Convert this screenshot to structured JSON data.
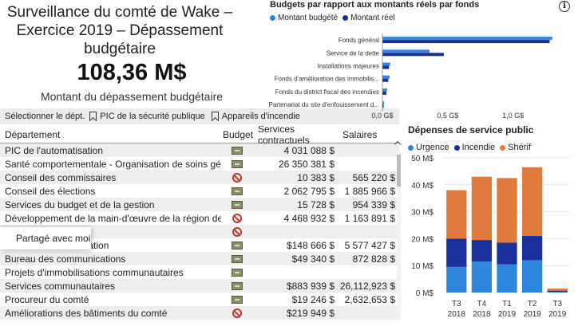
{
  "header": {
    "title_line1": "Surveillance du comté de Wake –",
    "title_line2": "Exercice 2019 – Dépassement",
    "title_line3": "budgétaire",
    "kpi_value": "108,36 M$",
    "kpi_label": "Montant du dépassement budgétaire"
  },
  "slicer": {
    "label": "Sélectionner le dépt.",
    "options": [
      "PIC de la sécurité publique",
      "Appareils d'incendie"
    ]
  },
  "table": {
    "headers": {
      "dept": "Département",
      "budget": "Budget",
      "services": "Services contractuels",
      "salaries": "Salaires"
    },
    "rows": [
      {
        "dept": "PIC de l'automatisation",
        "icon": "budget-ok-icon",
        "services": "4 031 088 $",
        "salaries": ""
      },
      {
        "dept": "Santé comportementale - Organisation de soins gérés",
        "icon": "budget-ok-icon",
        "services": "26 350 381 $",
        "salaries": ""
      },
      {
        "dept": "Conseil des commissaires",
        "icon": "over-budget-icon",
        "services": "10 383 $",
        "salaries": "565 220 $"
      },
      {
        "dept": "Conseil des élections",
        "icon": "budget-ok-icon",
        "services": "2 062 795 $",
        "salaries": "1 885 966 $"
      },
      {
        "dept": "Services du budget et de la gestion",
        "icon": "budget-ok-icon",
        "services": "15 728 $",
        "salaries": "954 339 $"
      },
      {
        "dept": "Développement de la main-d'œuvre de la région de la",
        "icon": "over-budget-icon",
        "services": "4 468 932 $",
        "salaries": "1 163 891 $"
      },
      {
        "dept": "",
        "icon": "over-budget-icon",
        "services": "",
        "salaries": ""
      },
      {
        "dept": "Bureau de l'identification",
        "icon": "budget-ok-icon",
        "services": "$148 666 $",
        "salaries": "5 577 427 $"
      },
      {
        "dept": "Bureau des communications",
        "icon": "budget-ok-icon",
        "services": "$49 340 $",
        "salaries": "872 828 $"
      },
      {
        "dept": "Projets d'immobilisations communautaires",
        "icon": "budget-ok-icon",
        "services": "",
        "salaries": ""
      },
      {
        "dept": "Services communautaires",
        "icon": "budget-ok-icon",
        "services": "$883 939 $",
        "salaries": "26,112,923 $"
      },
      {
        "dept": "Procureur du comté",
        "icon": "budget-ok-icon",
        "services": "$19 246 $",
        "salaries": "2,632,653 $"
      },
      {
        "dept": "Améliorations des bâtiments du comté",
        "icon": "over-budget-icon",
        "services": "$219 949 $",
        "salaries": ""
      }
    ]
  },
  "tooltip": {
    "text": "Partagé avec moi"
  },
  "colors": {
    "light_blue": "#2f86de",
    "dark_blue": "#1a2f9e",
    "orange": "#e07b3d"
  },
  "chart_data": [
    {
      "type": "bar",
      "orientation": "horizontal",
      "title": "Budgets par rapport aux montants réels par fonds",
      "categories": [
        "Fonds général",
        "Service de la dette",
        "Installations majeures",
        "Fonds d'amélioration des immobilis...",
        "Fonds du district fiscal des incendies",
        "Partenariat du site d'enfouissement d..."
      ],
      "series": [
        {
          "name": "Montant budgété",
          "color": "#2f86de",
          "values": [
            1.3,
            0.36,
            0.06,
            0.055,
            0.035,
            0.012
          ]
        },
        {
          "name": "Montant réel",
          "color": "#1a2f9e",
          "values": [
            1.28,
            0.47,
            0.05,
            0.045,
            0.03,
            0.01
          ]
        }
      ],
      "xticks": [
        "0,0 G$",
        "0,5 G$",
        "1,0 G$"
      ],
      "xlim": [
        0,
        1.35
      ],
      "legend": "top-left"
    },
    {
      "type": "bar",
      "stacked": true,
      "title": "Dépenses de service public",
      "categories": [
        "T3\n2018",
        "T4\n2018",
        "T1\n2019",
        "T2\n2019",
        "T3\n2019"
      ],
      "category_labels": [
        [
          "T3",
          "2018"
        ],
        [
          "T4",
          "2018"
        ],
        [
          "T1",
          "2019"
        ],
        [
          "T2",
          "2019"
        ],
        [
          "T3",
          "2019"
        ]
      ],
      "series": [
        {
          "name": "Urgence",
          "color": "#2f86de",
          "values": [
            9.5,
            11.5,
            10.5,
            12,
            0.3
          ]
        },
        {
          "name": "Incendie",
          "color": "#1a2f9e",
          "values": [
            10.5,
            8,
            8,
            9,
            0.4
          ]
        },
        {
          "name": "Shérif",
          "color": "#e07b3d",
          "values": [
            18,
            23.5,
            24,
            25.5,
            0.8
          ]
        }
      ],
      "yticks": [
        "0 M$",
        "10 M$",
        "20 M$",
        "30 M$",
        "40 M$",
        "50 M$"
      ],
      "ylim": [
        0,
        50
      ],
      "legend": "top-left"
    }
  ]
}
